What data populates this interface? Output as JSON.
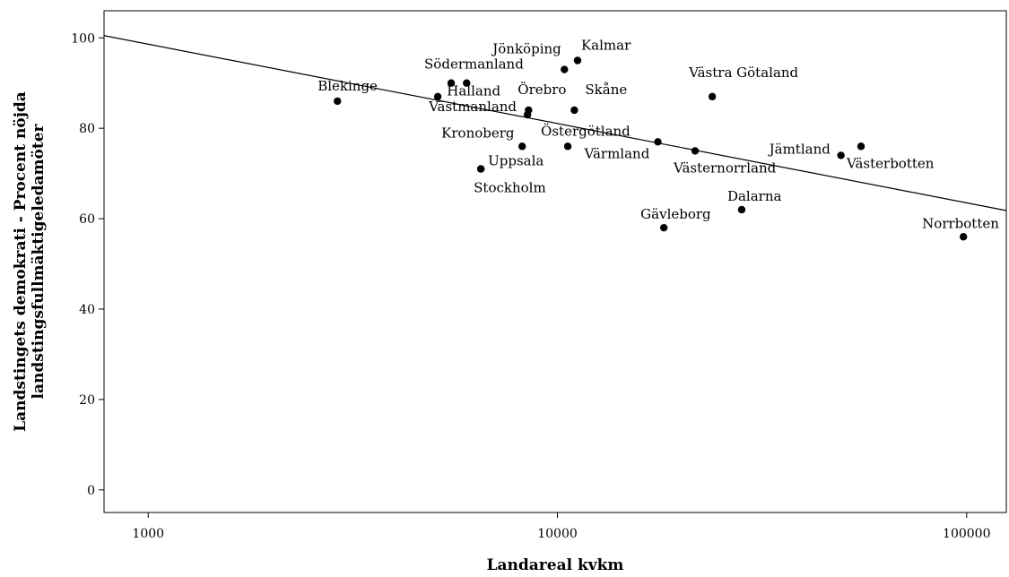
{
  "chart_data": {
    "type": "scatter",
    "xlabel": "Landareal kvkm",
    "ylabel_lines": [
      "Landstingets demokrati - Procent nöjda",
      "landstingsfullmäktigeledamöter"
    ],
    "x_scale": "log",
    "xlim": [
      780,
      125000
    ],
    "ylim": [
      -5,
      106
    ],
    "x_ticks": [
      1000,
      10000,
      100000
    ],
    "x_tick_labels": [
      "1000",
      "10000",
      "100000"
    ],
    "y_ticks": [
      0,
      20,
      40,
      60,
      80,
      100
    ],
    "y_tick_labels": [
      "0",
      "20",
      "40",
      "60",
      "80",
      "100"
    ],
    "grid": false,
    "fit_line": {
      "x": [
        780,
        125000
      ],
      "y": [
        100.5,
        61.8
      ]
    },
    "points": [
      {
        "name": "Blekinge",
        "x": 2900,
        "y": 86
      },
      {
        "name": "Västmanland",
        "x": 5100,
        "y": 87
      },
      {
        "name": "Södermanland",
        "x": 5500,
        "y": 90
      },
      {
        "name": "Halland",
        "x": 6000,
        "y": 90
      },
      {
        "name": "Jönköping",
        "x": 10400,
        "y": 93
      },
      {
        "name": "Kalmar",
        "x": 11200,
        "y": 95
      },
      {
        "name": "Örebro",
        "x": 8500,
        "y": 84
      },
      {
        "name": "Skåne",
        "x": 11000,
        "y": 84
      },
      {
        "name": "",
        "x": 8450,
        "y": 83
      },
      {
        "name": "Kronoberg",
        "x": 8200,
        "y": 76
      },
      {
        "name": "Östergötland",
        "x": 10600,
        "y": 76
      },
      {
        "name": "Uppsala",
        "x": 6500,
        "y": 71
      },
      {
        "name": "Stockholm",
        "x": 6500,
        "y": 71
      },
      {
        "name": "Värmland",
        "x": 17600,
        "y": 77
      },
      {
        "name": "Västra Götaland",
        "x": 23900,
        "y": 87
      },
      {
        "name": "Västernorrland",
        "x": 21700,
        "y": 75
      },
      {
        "name": "Gävleborg",
        "x": 18200,
        "y": 58
      },
      {
        "name": "Dalarna",
        "x": 28200,
        "y": 62
      },
      {
        "name": "Jämtland",
        "x": 49300,
        "y": 74
      },
      {
        "name": "Västerbotten",
        "x": 55200,
        "y": 76
      },
      {
        "name": "Norrbotten",
        "x": 98200,
        "y": 56
      }
    ]
  }
}
